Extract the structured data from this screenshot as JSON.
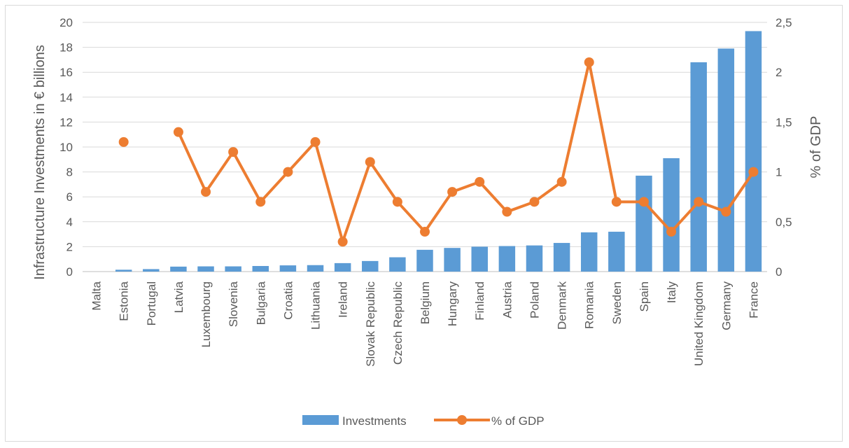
{
  "chart_data": {
    "type": "bar",
    "categories": [
      "Malta",
      "Estonia",
      "Portugal",
      "Latvia",
      "Luxembourg",
      "Slovenia",
      "Bulgaria",
      "Croatia",
      "Lithuania",
      "Ireland",
      "Slovak Republic",
      "Czech Republic",
      "Belgium",
      "Hungary",
      "Finland",
      "Austria",
      "Poland",
      "Denmark",
      "Romania",
      "Sweden",
      "Spain",
      "Italy",
      "United Kingdom",
      "Germany",
      "France"
    ],
    "series": [
      {
        "name": "Investments",
        "type": "bar",
        "axis": "left",
        "color": "#5b9bd5",
        "values": [
          0.0,
          0.15,
          0.2,
          0.4,
          0.42,
          0.42,
          0.45,
          0.5,
          0.52,
          0.68,
          0.85,
          1.15,
          1.75,
          1.9,
          2.0,
          2.05,
          2.1,
          2.3,
          3.15,
          3.2,
          7.7,
          9.1,
          16.8,
          17.9,
          19.3
        ]
      },
      {
        "name": "% of GDP",
        "type": "line",
        "axis": "right",
        "color": "#ed7d31",
        "values": [
          null,
          1.3,
          null,
          1.4,
          0.8,
          1.2,
          0.7,
          1.0,
          1.3,
          0.3,
          1.1,
          0.7,
          0.4,
          0.8,
          0.9,
          0.6,
          0.7,
          0.9,
          2.1,
          0.7,
          0.7,
          0.4,
          0.7,
          0.6,
          1.0
        ]
      }
    ],
    "ylabel": "Infrastructure Investments in € billions",
    "y2label": "% of GDP",
    "ylim": [
      0,
      20
    ],
    "y2lim": [
      0,
      2.5
    ],
    "yticks": [
      "0",
      "2",
      "4",
      "6",
      "8",
      "10",
      "12",
      "14",
      "16",
      "18",
      "20"
    ],
    "y2ticks": [
      "0",
      "0,5",
      "1",
      "1,5",
      "2",
      "2,5"
    ],
    "grid": true,
    "legend_position": "bottom"
  }
}
